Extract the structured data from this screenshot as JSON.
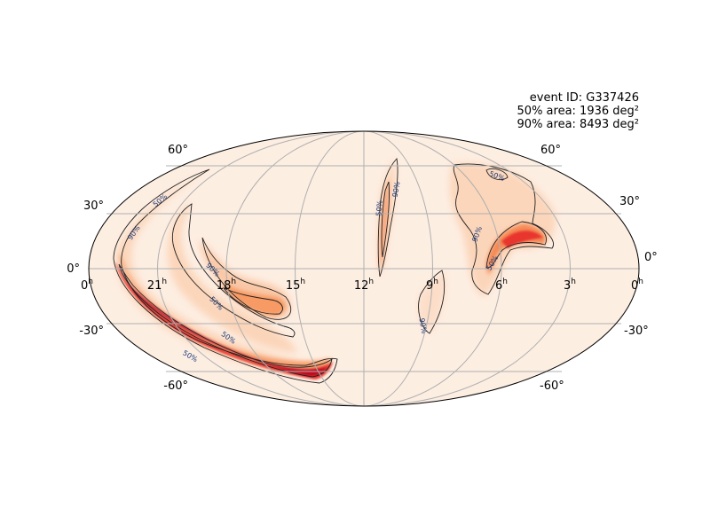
{
  "info": {
    "event_id": "event ID: G337426",
    "area_50": "50% area: 1936 deg²",
    "area_90": "90% area: 8493 deg²"
  },
  "axes": {
    "projection": "mollweide",
    "ra_labels": [
      "0",
      "21",
      "18",
      "15",
      "12",
      "9",
      "6",
      "3",
      "0"
    ],
    "ra_superscript": "h",
    "dec_labels_left": [
      "60°",
      "30°",
      "0°",
      "-30°",
      "-60°"
    ],
    "dec_labels_right": [
      "60°",
      "30°",
      "0°",
      "-30°",
      "-60°"
    ]
  },
  "contour_labels": {
    "p50": "50%",
    "p90": "90%"
  },
  "colors": {
    "background_fill": "#fdeee2",
    "low": "#fbd3b6",
    "mid": "#f79a63",
    "high": "#e8362d",
    "peak": "#b3001f",
    "contour": "#222222",
    "contour_label": "#1b3a7a",
    "grid": "#b0b0b0"
  }
}
